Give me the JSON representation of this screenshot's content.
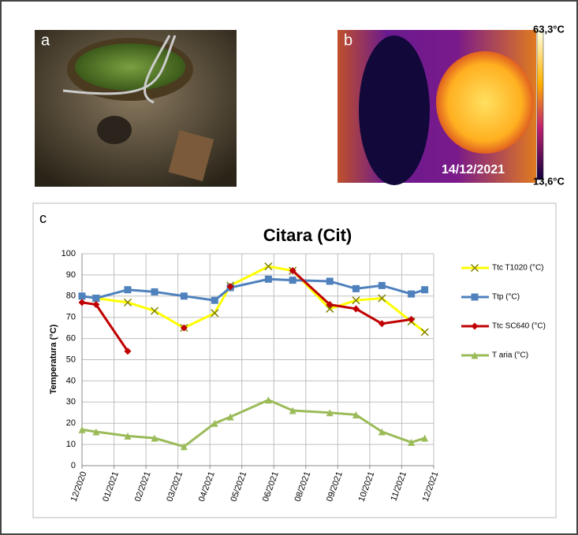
{
  "panels": {
    "a": "a",
    "b": "b",
    "c": "c",
    "thermal_max": "63,3°C",
    "thermal_min": "13,6°C",
    "thermal_date": "14/12/2021"
  },
  "chart_data": {
    "type": "line",
    "title": "Citara (Cit)",
    "y_label": "Temperatura (°C)",
    "x": [
      0,
      0.44,
      1.43,
      2.27,
      3.19,
      4.15,
      4.64,
      5.83,
      6.59,
      7.75,
      8.57,
      9.38,
      10.3,
      10.72
    ],
    "xlim": [
      0,
      11
    ],
    "xticks": [
      {
        "value": 0,
        "label": "12/2020"
      },
      {
        "value": 1,
        "label": "01/2021"
      },
      {
        "value": 2,
        "label": "02/2021"
      },
      {
        "value": 3,
        "label": "03/2021"
      },
      {
        "value": 4,
        "label": "04/2021"
      },
      {
        "value": 5,
        "label": "05/2021"
      },
      {
        "value": 6,
        "label": "06/2021"
      },
      {
        "value": 7,
        "label": "08/2021"
      },
      {
        "value": 8,
        "label": "09/2021"
      },
      {
        "value": 9,
        "label": "10/2021"
      },
      {
        "value": 10,
        "label": "11/2021"
      },
      {
        "value": 11,
        "label": "12/2021"
      }
    ],
    "ylim": [
      0,
      100
    ],
    "yticks": [
      0,
      10,
      20,
      30,
      40,
      50,
      60,
      70,
      80,
      90,
      100
    ],
    "grid": true,
    "series": [
      {
        "name": "Ttc T1020 (°C)",
        "color": "#ffff00",
        "marker": "x",
        "values": [
          null,
          79,
          77,
          73,
          65,
          72,
          85,
          94,
          92,
          74,
          78,
          79,
          68,
          63
        ]
      },
      {
        "name": "Ttp (°C)",
        "color": "#4f81bd",
        "marker": "square",
        "values": [
          80,
          79,
          83,
          82,
          80,
          78,
          84,
          88,
          87.5,
          87,
          83.5,
          85,
          81,
          83
        ]
      },
      {
        "name": "Ttc SC640 (°C)",
        "color": "#c00000",
        "marker": "diamond",
        "values": [
          77,
          76,
          54,
          null,
          65,
          null,
          84.5,
          null,
          92,
          76,
          74,
          67,
          69,
          null
        ]
      },
      {
        "name": "T aria (°C)",
        "color": "#9bbb59",
        "marker": "triangle",
        "values": [
          17,
          16,
          14,
          13,
          9,
          20,
          23,
          31,
          26,
          25,
          24,
          16,
          11,
          13
        ]
      }
    ]
  }
}
